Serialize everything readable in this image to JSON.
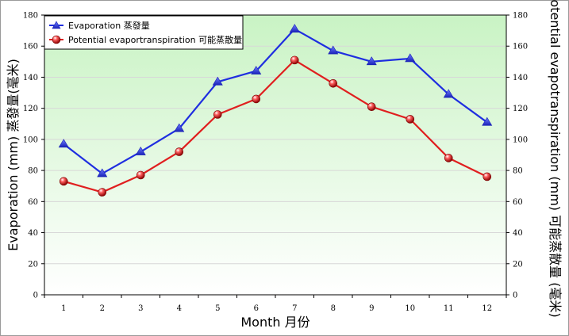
{
  "chart_data": {
    "type": "line",
    "categories": [
      "1",
      "2",
      "3",
      "4",
      "5",
      "6",
      "7",
      "8",
      "9",
      "10",
      "11",
      "12"
    ],
    "series": [
      {
        "name": "Evaporation 蒸發量",
        "color": "#1f2ee0",
        "marker": "triangle",
        "values": [
          97,
          78,
          92,
          107,
          137,
          144,
          171,
          157,
          150,
          152,
          129,
          111
        ]
      },
      {
        "name": "Potential evaportranspiration 可能蒸散量",
        "color": "#e01f1f",
        "marker": "sphere",
        "values": [
          73,
          66,
          77,
          92,
          116,
          126,
          151,
          136,
          121,
          113,
          88,
          76
        ]
      }
    ],
    "xlabel": "Month 月份",
    "ylabel_left": "Evaporation (mm) 蒸發量(毫米)",
    "ylabel_right": "Potential evapotranspiration (mm) 可能蒸散量 (毫米)",
    "ylim": [
      0,
      180
    ],
    "yticks": [
      0,
      20,
      40,
      60,
      80,
      100,
      120,
      140,
      160,
      180
    ],
    "legend": "top-left",
    "grid": "horizontal",
    "background_gradient": [
      "#c9f3c4",
      "#ffffff"
    ]
  }
}
